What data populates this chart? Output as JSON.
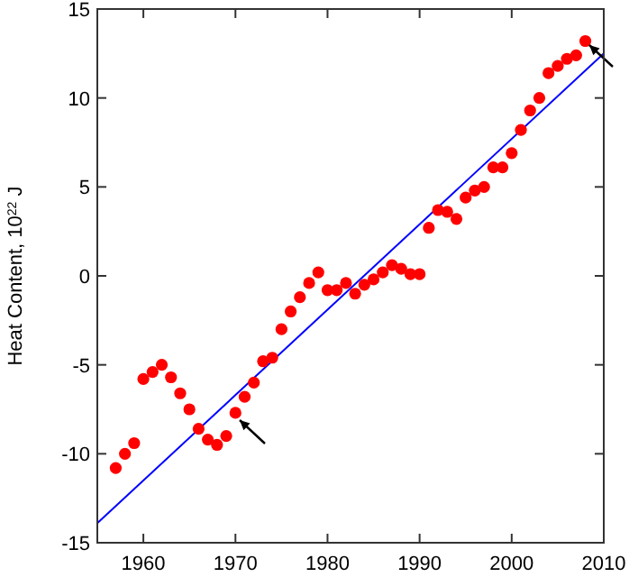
{
  "chart_data": {
    "type": "scatter",
    "ylabel": "Heat Content, 10$^{22}$ J",
    "xlim": [
      1955,
      2010
    ],
    "xticks": [
      1960,
      1970,
      1980,
      1990,
      2000,
      2010
    ],
    "ylim": [
      -15,
      15
    ],
    "yticks": [
      -15,
      -10,
      -5,
      0,
      5,
      10,
      15
    ],
    "grid": false,
    "marker": "circle",
    "series": [
      {
        "color": "#ff0000",
        "x": [
          1957,
          1958,
          1959,
          1960,
          1961,
          1962,
          1963,
          1964,
          1965,
          1966,
          1967,
          1968,
          1969,
          1970,
          1971,
          1972,
          1973,
          1974,
          1975,
          1976,
          1977,
          1978,
          1979,
          1980,
          1981,
          1982,
          1983,
          1984,
          1985,
          1986,
          1987,
          1988,
          1989,
          1990,
          1991,
          1992,
          1993,
          1994,
          1995,
          1996,
          1997,
          1998,
          1999,
          2000,
          2001,
          2002,
          2003,
          2004,
          2005,
          2006,
          2007,
          2008
        ],
        "values": [
          -10.8,
          -10.0,
          -9.4,
          -5.8,
          -5.4,
          -5.0,
          -5.7,
          -6.6,
          -7.5,
          -8.6,
          -9.2,
          -9.5,
          -9.0,
          -7.7,
          -6.8,
          -6.0,
          -4.8,
          -4.6,
          -3.0,
          -2.0,
          -1.2,
          -0.4,
          0.2,
          -0.8,
          -0.8,
          -0.4,
          -1.0,
          -0.5,
          -0.2,
          0.2,
          0.6,
          0.4,
          0.1,
          0.1,
          2.7,
          3.7,
          3.6,
          3.2,
          4.4,
          4.8,
          5.0,
          6.1,
          6.1,
          6.9,
          8.2,
          9.3,
          10.0,
          11.4,
          11.8,
          12.2,
          12.4,
          13.2
        ]
      },
      {
        "type": "line",
        "marker": "none",
        "color": "#0000ff",
        "x": [
          1955,
          2010
        ],
        "values": [
          -13.9,
          12.5
        ]
      }
    ]
  }
}
